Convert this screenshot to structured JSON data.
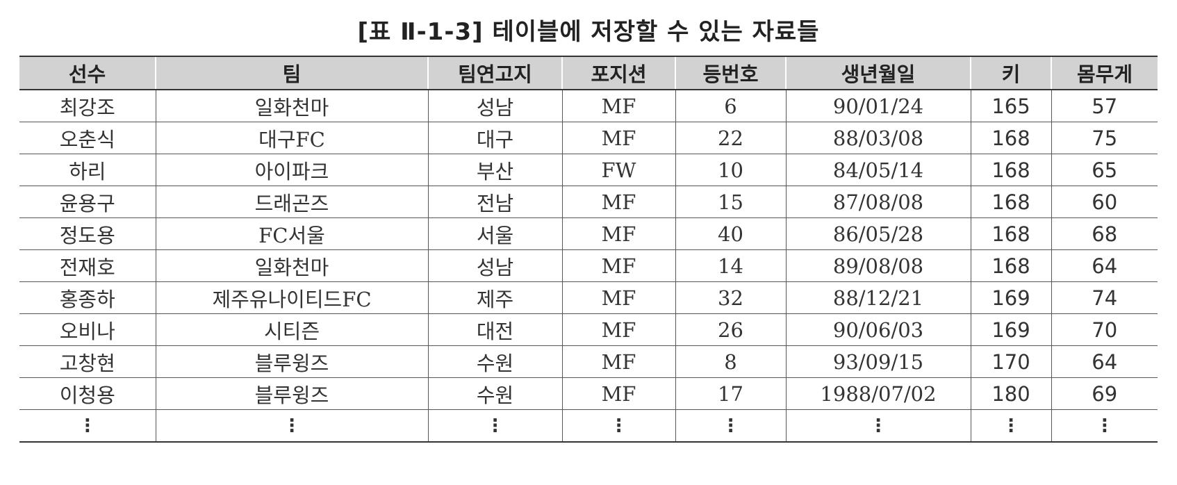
{
  "caption": "[표 Ⅱ-1-3] 테이블에 저장할 수 있는 자료들",
  "table": {
    "headers": [
      "선수",
      "팀",
      "팀연고지",
      "포지션",
      "등번호",
      "생년월일",
      "키",
      "몸무게"
    ],
    "rows": [
      [
        "최강조",
        "일화천마",
        "성남",
        "MF",
        "6",
        "90/01/24",
        "165",
        "57"
      ],
      [
        "오춘식",
        "대구FC",
        "대구",
        "MF",
        "22",
        "88/03/08",
        "168",
        "75"
      ],
      [
        "하리",
        "아이파크",
        "부산",
        "FW",
        "10",
        "84/05/14",
        "168",
        "65"
      ],
      [
        "윤용구",
        "드래곤즈",
        "전남",
        "MF",
        "15",
        "87/08/08",
        "168",
        "60"
      ],
      [
        "정도용",
        "FC서울",
        "서울",
        "MF",
        "40",
        "86/05/28",
        "168",
        "68"
      ],
      [
        "전재호",
        "일화천마",
        "성남",
        "MF",
        "14",
        "89/08/08",
        "168",
        "64"
      ],
      [
        "홍종하",
        "제주유나이티드FC",
        "제주",
        "MF",
        "32",
        "88/12/21",
        "169",
        "74"
      ],
      [
        "오비나",
        "시티즌",
        "대전",
        "MF",
        "26",
        "90/06/03",
        "169",
        "70"
      ],
      [
        "고창현",
        "블루윙즈",
        "수원",
        "MF",
        "8",
        "93/09/15",
        "170",
        "64"
      ],
      [
        "이청용",
        "블루윙즈",
        "수원",
        "MF",
        "17",
        "1988/07/02",
        "180",
        "69"
      ],
      [
        "⋮",
        "⋮",
        "⋮",
        "⋮",
        "⋮",
        "⋮",
        "⋮",
        "⋮"
      ]
    ]
  }
}
